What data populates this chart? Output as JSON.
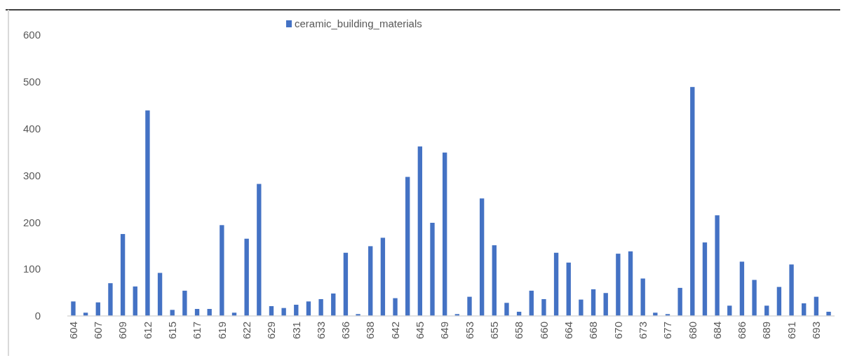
{
  "chart_data": {
    "type": "bar",
    "categories": [
      "604",
      null,
      "607",
      null,
      "609",
      null,
      "612",
      null,
      "615",
      null,
      "617",
      null,
      "619",
      null,
      "622",
      null,
      "629",
      null,
      "631",
      null,
      "633",
      null,
      "636",
      null,
      "638",
      null,
      "642",
      null,
      "645",
      null,
      "649",
      null,
      "653",
      null,
      "655",
      null,
      "658",
      null,
      "660",
      null,
      "664",
      null,
      "668",
      null,
      "670",
      null,
      "673",
      null,
      "677",
      null,
      "680",
      null,
      "684",
      null,
      "686",
      null,
      "689",
      null,
      "691",
      null,
      "693",
      null
    ],
    "series": [
      {
        "name": "ceramic_building_materials",
        "color": "#4472c4",
        "values": [
          31,
          7,
          29,
          70,
          175,
          63,
          439,
          92,
          13,
          54,
          15,
          15,
          194,
          7,
          165,
          282,
          21,
          17,
          24,
          31,
          36,
          48,
          135,
          4,
          149,
          167,
          38,
          297,
          362,
          199,
          349,
          4,
          41,
          251,
          151,
          28,
          9,
          54,
          36,
          135,
          114,
          35,
          57,
          49,
          133,
          138,
          80,
          7,
          4,
          60,
          489,
          157,
          215,
          22,
          116,
          77,
          22,
          62,
          110,
          27,
          41,
          9
        ]
      }
    ],
    "ylim": [
      0,
      600
    ],
    "yticks": [
      0,
      100,
      200,
      300,
      400,
      500,
      600
    ],
    "grid": false,
    "legend": "top"
  }
}
